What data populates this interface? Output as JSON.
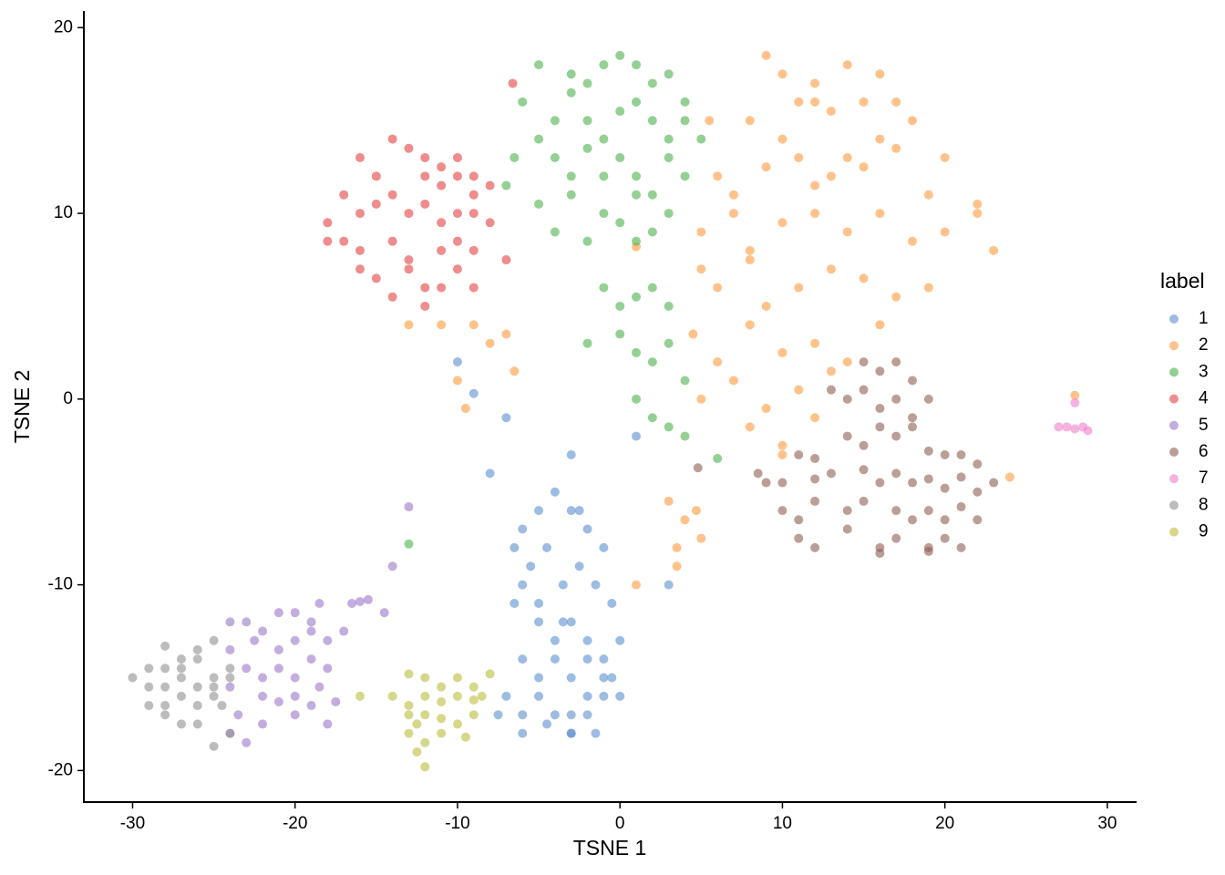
{
  "chart_data": {
    "type": "scatter",
    "x_label": "TSNE 1",
    "y_label": "TSNE 2",
    "legend_title": "label",
    "legend_position": "right",
    "grid": false,
    "xlim": [
      -33,
      31.8
    ],
    "ylim": [
      -21.7,
      20.9
    ],
    "xticks": [
      -30,
      -20,
      -10,
      0,
      10,
      20,
      30
    ],
    "yticks": [
      -20,
      -10,
      0,
      10,
      20
    ],
    "series": [
      {
        "name": "1",
        "color": "#5b8fcf",
        "x": [
          -6,
          -5,
          -4,
          -3,
          -2,
          -1,
          -5.5,
          -4.5,
          -3.5,
          -2.5,
          -1.5,
          -0.5,
          -6.5,
          -5,
          -4,
          -3,
          -2,
          -1,
          0,
          -6,
          -5,
          -4,
          -3,
          -2,
          -1,
          -7,
          -6,
          -5,
          -4,
          -3,
          -2,
          -1,
          0,
          -7.5,
          -6,
          -4.5,
          -3,
          -1.5,
          -0.5,
          -5,
          -3.5,
          -2,
          -3,
          -7,
          -8,
          -10,
          -9,
          1,
          3,
          -6.5,
          -2.5,
          -3,
          -6
        ],
        "y": [
          -7,
          -6,
          -5,
          -6,
          -7,
          -8,
          -9,
          -8,
          -10,
          -9,
          -10,
          -11,
          -11,
          -12,
          -13,
          -12,
          -13,
          -14,
          -13,
          -14,
          -15,
          -14,
          -15,
          -16,
          -15,
          -16,
          -17,
          -16,
          -17,
          -18,
          -17,
          -16,
          -16,
          -17,
          -18,
          -17.5,
          -17,
          -18,
          -15,
          -11,
          -12,
          -14,
          -3,
          -1,
          -4,
          2,
          0.3,
          -2,
          -10,
          -8,
          -6,
          -18,
          -10
        ]
      },
      {
        "name": "2",
        "color": "#ff9a3c",
        "x": [
          9,
          10,
          12,
          14,
          15,
          16,
          17,
          8,
          10,
          11,
          13,
          14,
          16,
          18,
          6,
          7,
          9,
          11,
          12,
          13,
          15,
          17,
          19,
          5,
          7,
          8,
          10,
          12,
          14,
          16,
          18,
          20,
          22,
          23,
          5,
          6,
          8,
          9,
          11,
          13,
          15,
          17,
          19,
          4.5,
          6,
          8,
          10,
          12,
          14,
          16,
          5,
          7,
          9,
          11,
          13,
          8,
          10,
          12,
          -9,
          -8,
          -7,
          -6.5,
          -10,
          -11,
          -13,
          -9.5,
          3,
          4,
          3.5,
          5,
          4.7,
          1,
          3.5,
          10,
          24,
          28,
          1,
          5.5,
          12,
          20,
          22
        ],
        "y": [
          18.5,
          17.5,
          17,
          18,
          16,
          17.5,
          16,
          15,
          14,
          16,
          15.5,
          13,
          14,
          15,
          12,
          11,
          12.5,
          13,
          11.5,
          12,
          12.5,
          13.5,
          11,
          9,
          10,
          8,
          9.5,
          10,
          9,
          10,
          8.5,
          9,
          10,
          8,
          7,
          6,
          7.5,
          5,
          6,
          7,
          6.5,
          5.5,
          6,
          3.5,
          2,
          4,
          2.5,
          3,
          2,
          4,
          0,
          1,
          -0.5,
          0.5,
          1.5,
          -1.5,
          -2.5,
          -1,
          4,
          3,
          3.5,
          1.5,
          1,
          4,
          4,
          -0.5,
          -5.5,
          -6.5,
          -9,
          -7.5,
          -6,
          -10,
          -8,
          -3,
          -4.2,
          0.2,
          8.2,
          15,
          16,
          13,
          10.5
        ]
      },
      {
        "name": "3",
        "color": "#4cb04c",
        "x": [
          -5,
          -3,
          -2,
          -1,
          0,
          1,
          2,
          3,
          4,
          -6,
          -4,
          -3,
          -2,
          -1,
          0,
          1,
          2,
          3,
          4,
          5,
          -6.5,
          -5,
          -4,
          -3,
          -2,
          -1,
          0,
          1,
          2,
          3,
          4,
          -7,
          -5,
          -3,
          -1,
          1,
          3,
          -4,
          -2,
          0,
          1,
          2,
          -1,
          0,
          1,
          2,
          3,
          -2,
          0,
          1,
          2,
          3,
          4,
          1,
          2,
          3,
          4,
          6,
          -13
        ],
        "y": [
          18,
          17.5,
          17,
          18,
          18.5,
          18,
          17,
          17.5,
          16,
          16,
          15,
          16.5,
          15,
          14,
          15.5,
          16,
          15,
          14,
          15,
          14,
          13,
          14,
          13,
          12,
          13.5,
          12,
          13,
          12,
          11,
          13,
          12,
          11.5,
          10.5,
          11,
          10,
          11,
          10,
          9,
          8.5,
          9.5,
          8.5,
          9,
          6,
          5,
          5.5,
          6,
          5,
          3,
          3.5,
          2.5,
          2,
          3,
          1,
          0,
          -1,
          -1.5,
          -2,
          -3.2,
          -7.8
        ]
      },
      {
        "name": "4",
        "color": "#e4403f",
        "x": [
          -16,
          -14,
          -13,
          -12,
          -11,
          -10,
          -9,
          -17,
          -15,
          -14,
          -12,
          -11,
          -10,
          -9,
          -8,
          -18,
          -16,
          -15,
          -13,
          -12,
          -11,
          -10,
          -9,
          -8,
          -17,
          -16,
          -14,
          -13,
          -11,
          -10,
          -9,
          -16,
          -15,
          -13,
          -12,
          -10,
          -9,
          -14,
          -12,
          -11,
          -6.6,
          -18,
          -7
        ],
        "y": [
          13,
          14,
          13.5,
          13,
          12.5,
          13,
          12,
          11,
          12,
          11,
          12,
          11.5,
          12,
          11,
          11.5,
          9.5,
          10,
          10.5,
          10,
          10.5,
          9.5,
          10,
          10,
          9.5,
          8.5,
          8,
          8.5,
          7.5,
          8,
          8.5,
          8,
          7,
          6.5,
          7,
          6,
          7,
          6,
          5.5,
          5,
          6,
          17,
          8.5,
          7.5
        ]
      },
      {
        "name": "5",
        "color": "#9b77c8",
        "x": [
          -24,
          -23,
          -22,
          -21,
          -20,
          -19,
          -18.5,
          -24,
          -22.5,
          -21,
          -20,
          -19,
          -18,
          -17,
          -23,
          -22,
          -21,
          -20,
          -19,
          -18,
          -24,
          -22,
          -20,
          -18.5,
          -17.5,
          -23.5,
          -22,
          -20,
          -18,
          -24,
          -23,
          -21,
          -19,
          -16.5,
          -16,
          -15.5,
          -14.5,
          -13,
          -14
        ],
        "y": [
          -12,
          -12,
          -12.5,
          -11.5,
          -11.5,
          -12,
          -11,
          -13.5,
          -13,
          -13.5,
          -13,
          -12.5,
          -13,
          -12.5,
          -14.5,
          -15,
          -14.5,
          -15,
          -14,
          -14.5,
          -15.5,
          -16,
          -16,
          -15.5,
          -16.3,
          -17,
          -17.5,
          -17,
          -17.5,
          -18,
          -18.5,
          -16.3,
          -16.5,
          -11,
          -10.9,
          -10.8,
          -11.5,
          -5.8,
          -9
        ]
      },
      {
        "name": "6",
        "color": "#8e5f52",
        "x": [
          15,
          16,
          17,
          18,
          13,
          14,
          15,
          16,
          17,
          18,
          19,
          11,
          12,
          14,
          15,
          16,
          17,
          18,
          19,
          20,
          21,
          22,
          9,
          10,
          12,
          13,
          15,
          16,
          17,
          18,
          19,
          20,
          21,
          22,
          23,
          10,
          11,
          12,
          14,
          15,
          17,
          18,
          19,
          20,
          21,
          22,
          11,
          12,
          14,
          16,
          17,
          19,
          20,
          21,
          16,
          19,
          4.8,
          8.5
        ],
        "y": [
          2,
          1.5,
          2,
          1,
          0.5,
          0,
          0.5,
          -0.5,
          0,
          -1,
          0,
          -3,
          -3.2,
          -2,
          -2.5,
          -1.5,
          -2,
          -1.5,
          -2.8,
          -3,
          -3,
          -3.5,
          -4.5,
          -4.5,
          -4.3,
          -4,
          -3.8,
          -4.5,
          -4,
          -4.5,
          -4.3,
          -4.8,
          -4.2,
          -5,
          -4.5,
          -6,
          -6.5,
          -5.5,
          -6,
          -5.5,
          -6,
          -6.5,
          -6,
          -6.5,
          -5.8,
          -6.5,
          -7.5,
          -8,
          -7,
          -8,
          -7.5,
          -8,
          -7.5,
          -8,
          -8.3,
          -8.2,
          -3.7,
          -4
        ]
      },
      {
        "name": "7",
        "color": "#f07fc8",
        "x": [
          27,
          27.5,
          28,
          28.5,
          28.8,
          28
        ],
        "y": [
          -1.5,
          -1.5,
          -1.6,
          -1.5,
          -1.7,
          -0.2
        ]
      },
      {
        "name": "8",
        "color": "#8f8f8f",
        "x": [
          -28,
          -27,
          -26,
          -25,
          -29,
          -28,
          -27,
          -26,
          -25,
          -24,
          -30,
          -29,
          -28,
          -27,
          -26,
          -25,
          -24,
          -29,
          -28,
          -27,
          -26,
          -25,
          -24.5,
          -28,
          -27,
          -26,
          -25,
          -24
        ],
        "y": [
          -13.3,
          -14,
          -13.5,
          -13,
          -14.5,
          -14.5,
          -14.5,
          -14,
          -15,
          -14.5,
          -15,
          -15.5,
          -15.5,
          -15,
          -15.5,
          -15.5,
          -15,
          -16.5,
          -16.5,
          -16,
          -16.5,
          -16,
          -16.5,
          -17,
          -17.5,
          -17.5,
          -18.7,
          -18
        ]
      },
      {
        "name": "9",
        "color": "#bdbd3a",
        "x": [
          -13,
          -12,
          -11,
          -10,
          -9,
          -8,
          -14,
          -13,
          -12,
          -11,
          -10,
          -9,
          -8.5,
          -13,
          -12.5,
          -12,
          -11,
          -10,
          -9,
          -13,
          -12,
          -11,
          -9.5,
          -12.5,
          -12,
          -16
        ],
        "y": [
          -14.8,
          -15,
          -15.5,
          -15,
          -15.5,
          -14.8,
          -16,
          -16.5,
          -16,
          -16.3,
          -16,
          -16.2,
          -16,
          -17,
          -17.5,
          -17,
          -17.2,
          -17.5,
          -17,
          -18,
          -18.5,
          -18,
          -18.2,
          -19,
          -19.8,
          -16
        ]
      }
    ]
  }
}
